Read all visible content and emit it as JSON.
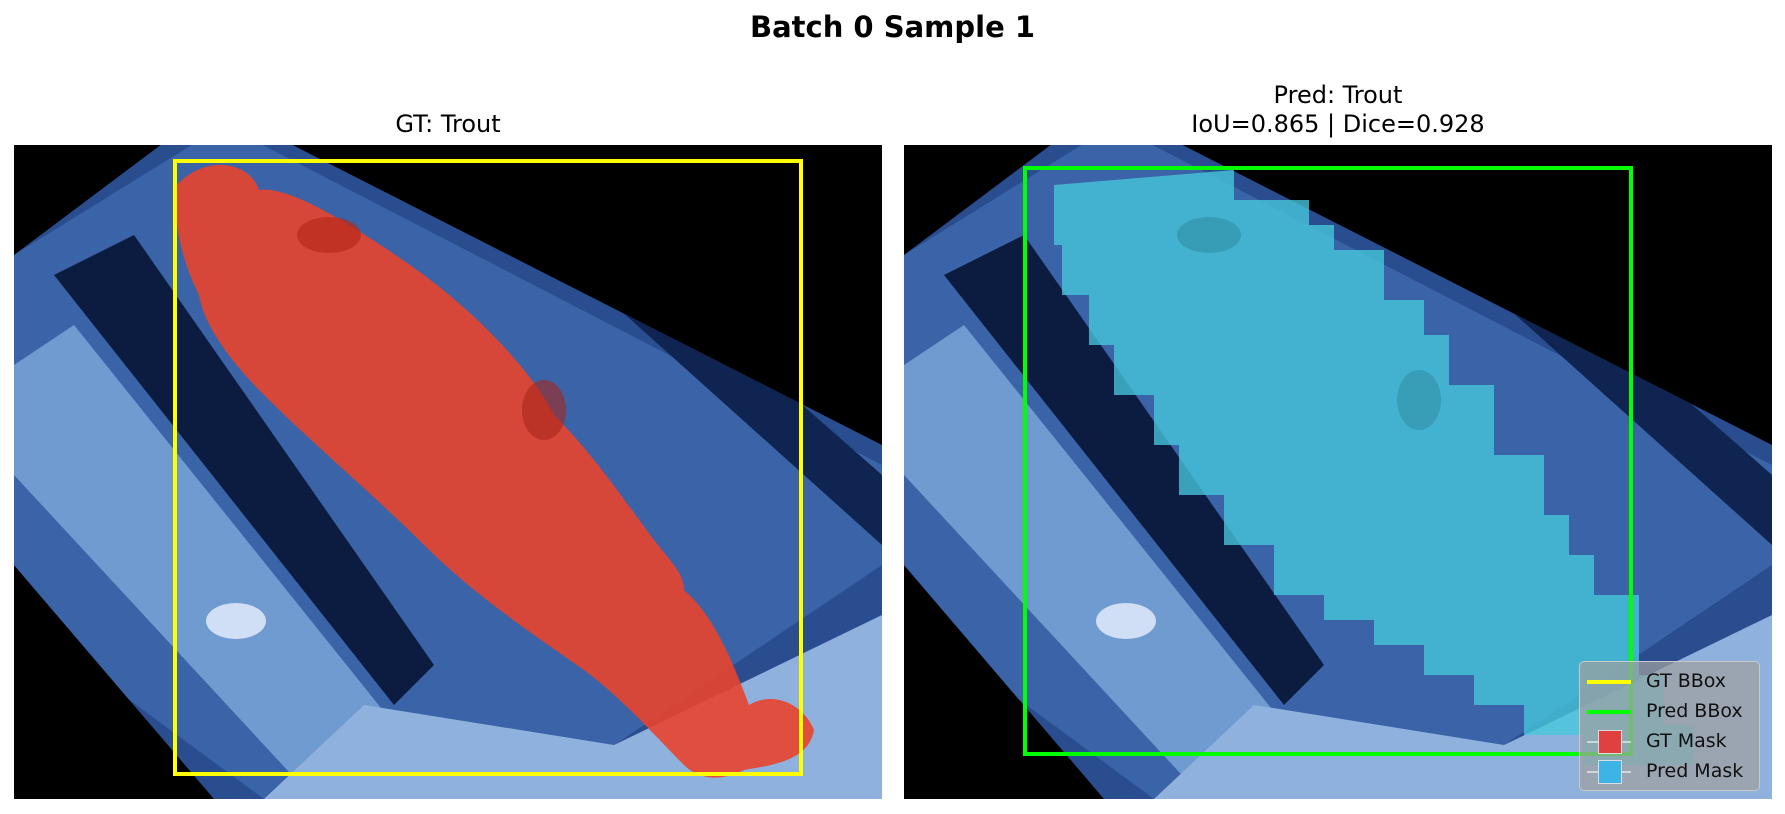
{
  "figure": {
    "suptitle": "Batch 0 Sample 1"
  },
  "left_panel": {
    "title": "GT: Trout"
  },
  "right_panel": {
    "title_line1": "Pred: Trout",
    "title_line2": "IoU=0.865 | Dice=0.928"
  },
  "legend": {
    "items": [
      {
        "label": "GT BBox",
        "color": "#ffff00",
        "kind": "line"
      },
      {
        "label": "Pred BBox",
        "color": "#00ff00",
        "kind": "line"
      },
      {
        "label": "GT Mask",
        "color": "#e04040",
        "kind": "patch"
      },
      {
        "label": "Pred Mask",
        "color": "#3cb4e6",
        "kind": "patch"
      }
    ]
  },
  "colors": {
    "gt_bbox": "#ffff00",
    "pred_bbox": "#00ff00",
    "gt_mask": "#e8442c",
    "pred_mask": "#46c8dc"
  }
}
